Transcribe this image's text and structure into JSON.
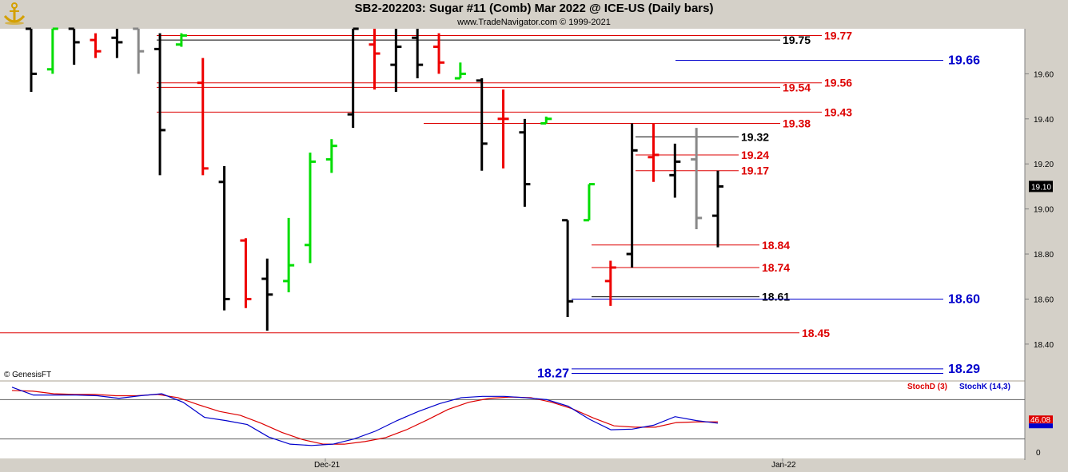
{
  "header": {
    "title": "SB2-202203:  Sugar #11 (Comb) Mar 2022 @ ICE-US  (Daily bars)",
    "copyright": "www.TradeNavigator.com © 1999-2021",
    "watermark": "© GenesisFT"
  },
  "colors": {
    "up": "#00dd00",
    "down": "#ee0000",
    "neutral": "#000000",
    "grey": "#888888",
    "red_line": "#dd0000",
    "black_line": "#000000",
    "blue_line": "#0000cc",
    "stochD": "#dd0000",
    "stochK": "#0000cc"
  },
  "chart_data": [
    {
      "type": "ohlc",
      "x_axis": {
        "labels": [
          "Dec-21",
          "Jan-22"
        ]
      },
      "y_axis": {
        "ticks": [
          "19.60",
          "19.40",
          "19.20",
          "19.00",
          "18.80",
          "18.60",
          "18.40"
        ],
        "ylim": [
          18.24,
          19.8
        ]
      },
      "last_price": "19.10",
      "bars": [
        {
          "h": 19.8,
          "l": 19.52,
          "o": 19.8,
          "c": 19.6,
          "col": "neutral"
        },
        {
          "h": 19.8,
          "l": 19.6,
          "o": 19.62,
          "c": 19.8,
          "col": "up"
        },
        {
          "h": 19.8,
          "l": 19.64,
          "o": 19.8,
          "c": 19.74,
          "col": "neutral"
        },
        {
          "h": 19.78,
          "l": 19.67,
          "o": 19.75,
          "c": 19.7,
          "col": "down"
        },
        {
          "h": 19.8,
          "l": 19.67,
          "o": 19.76,
          "c": 19.74,
          "col": "neutral"
        },
        {
          "h": 19.8,
          "l": 19.6,
          "o": 19.8,
          "c": 19.7,
          "col": "grey"
        },
        {
          "h": 19.78,
          "l": 19.15,
          "o": 19.71,
          "c": 19.35,
          "col": "neutral"
        },
        {
          "h": 19.78,
          "l": 19.72,
          "o": 19.73,
          "c": 19.77,
          "col": "up"
        },
        {
          "h": 19.67,
          "l": 19.15,
          "o": 19.56,
          "c": 19.18,
          "col": "down"
        },
        {
          "h": 19.19,
          "l": 18.55,
          "o": 19.12,
          "c": 18.6,
          "col": "neutral"
        },
        {
          "h": 18.87,
          "l": 18.56,
          "o": 18.86,
          "c": 18.6,
          "col": "down"
        },
        {
          "h": 18.78,
          "l": 18.46,
          "o": 18.69,
          "c": 18.62,
          "col": "neutral"
        },
        {
          "h": 18.96,
          "l": 18.63,
          "o": 18.68,
          "c": 18.75,
          "col": "up"
        },
        {
          "h": 19.25,
          "l": 18.76,
          "o": 18.84,
          "c": 19.21,
          "col": "up"
        },
        {
          "h": 19.31,
          "l": 19.16,
          "o": 19.22,
          "c": 19.28,
          "col": "up"
        },
        {
          "h": 19.8,
          "l": 19.36,
          "o": 19.42,
          "c": 19.8,
          "col": "neutral"
        },
        {
          "h": 19.8,
          "l": 19.53,
          "o": 19.73,
          "c": 19.69,
          "col": "down"
        },
        {
          "h": 19.8,
          "l": 19.52,
          "o": 19.64,
          "c": 19.72,
          "col": "neutral"
        },
        {
          "h": 19.8,
          "l": 19.58,
          "o": 19.76,
          "c": 19.64,
          "col": "neutral"
        },
        {
          "h": 19.78,
          "l": 19.6,
          "o": 19.72,
          "c": 19.65,
          "col": "down"
        },
        {
          "h": 19.65,
          "l": 19.58,
          "o": 19.58,
          "c": 19.6,
          "col": "up"
        },
        {
          "h": 19.58,
          "l": 19.17,
          "o": 19.57,
          "c": 19.29,
          "col": "neutral"
        },
        {
          "h": 19.53,
          "l": 19.18,
          "o": 19.4,
          "c": 19.4,
          "col": "down"
        },
        {
          "h": 19.4,
          "l": 19.01,
          "o": 19.34,
          "c": 19.11,
          "col": "neutral"
        },
        {
          "h": 19.41,
          "l": 19.38,
          "o": 19.38,
          "c": 19.4,
          "col": "up"
        },
        {
          "h": 18.95,
          "l": 18.52,
          "o": 18.95,
          "c": 18.59,
          "col": "neutral"
        },
        {
          "h": 19.11,
          "l": 18.95,
          "o": 18.95,
          "c": 19.11,
          "col": "up"
        },
        {
          "h": 18.77,
          "l": 18.57,
          "o": 18.68,
          "c": 18.74,
          "col": "down"
        },
        {
          "h": 19.38,
          "l": 18.74,
          "o": 18.8,
          "c": 19.26,
          "col": "neutral"
        },
        {
          "h": 19.38,
          "l": 19.12,
          "o": 19.23,
          "c": 19.24,
          "col": "down"
        },
        {
          "h": 19.29,
          "l": 19.05,
          "o": 19.15,
          "c": 19.21,
          "col": "neutral"
        },
        {
          "h": 19.36,
          "l": 18.91,
          "o": 19.22,
          "c": 18.96,
          "col": "grey"
        },
        {
          "h": 19.17,
          "l": 18.83,
          "o": 18.97,
          "c": 19.1,
          "col": "neutral"
        }
      ],
      "levels": [
        {
          "value": 19.77,
          "label": "19.77",
          "color": "red_line"
        },
        {
          "value": 19.75,
          "label": "19.75",
          "color": "black_line"
        },
        {
          "value": 19.66,
          "label": "19.66",
          "color": "blue_line"
        },
        {
          "value": 19.56,
          "label": "19.56",
          "color": "red_line"
        },
        {
          "value": 19.54,
          "label": "19.54",
          "color": "red_line"
        },
        {
          "value": 19.43,
          "label": "19.43",
          "color": "red_line"
        },
        {
          "value": 19.38,
          "label": "19.38",
          "color": "red_line"
        },
        {
          "value": 19.32,
          "label": "19.32",
          "color": "black_line"
        },
        {
          "value": 19.24,
          "label": "19.24",
          "color": "red_line"
        },
        {
          "value": 19.17,
          "label": "19.17",
          "color": "red_line"
        },
        {
          "value": 18.84,
          "label": "18.84",
          "color": "red_line"
        },
        {
          "value": 18.74,
          "label": "18.74",
          "color": "red_line"
        },
        {
          "value": 18.61,
          "label": "18.61",
          "color": "black_line"
        },
        {
          "value": 18.6,
          "label": "18.60",
          "color": "blue_line"
        },
        {
          "value": 18.45,
          "label": "18.45",
          "color": "red_line"
        },
        {
          "value": 18.29,
          "label": "18.29",
          "color": "blue_line"
        },
        {
          "value": 18.27,
          "label": "18.27",
          "color": "blue_line"
        }
      ]
    },
    {
      "type": "line",
      "legend": [
        "StochD (3)",
        "StochK (14,3)"
      ],
      "y_axis": {
        "ticks": [
          "0"
        ],
        "ylim": [
          0,
          100
        ]
      },
      "last_value": "46.08",
      "series": [
        {
          "name": "StochD (3)",
          "color": "stochD",
          "values": [
            94,
            93,
            89,
            88,
            88,
            86,
            86,
            88,
            83,
            72,
            62,
            56,
            44,
            30,
            19,
            12,
            12,
            16,
            22,
            34,
            49,
            65,
            76,
            82,
            84,
            83,
            76,
            66,
            52,
            40,
            38,
            38,
            45,
            46,
            46
          ]
        },
        {
          "name": "StochK (14,3)",
          "color": "stochK",
          "values": [
            99,
            87,
            87,
            87,
            86,
            82,
            86,
            89,
            76,
            53,
            48,
            42,
            23,
            12,
            10,
            12,
            20,
            32,
            48,
            62,
            74,
            83,
            85,
            85,
            83,
            80,
            70,
            50,
            34,
            35,
            41,
            54,
            48,
            44
          ]
        }
      ]
    }
  ]
}
